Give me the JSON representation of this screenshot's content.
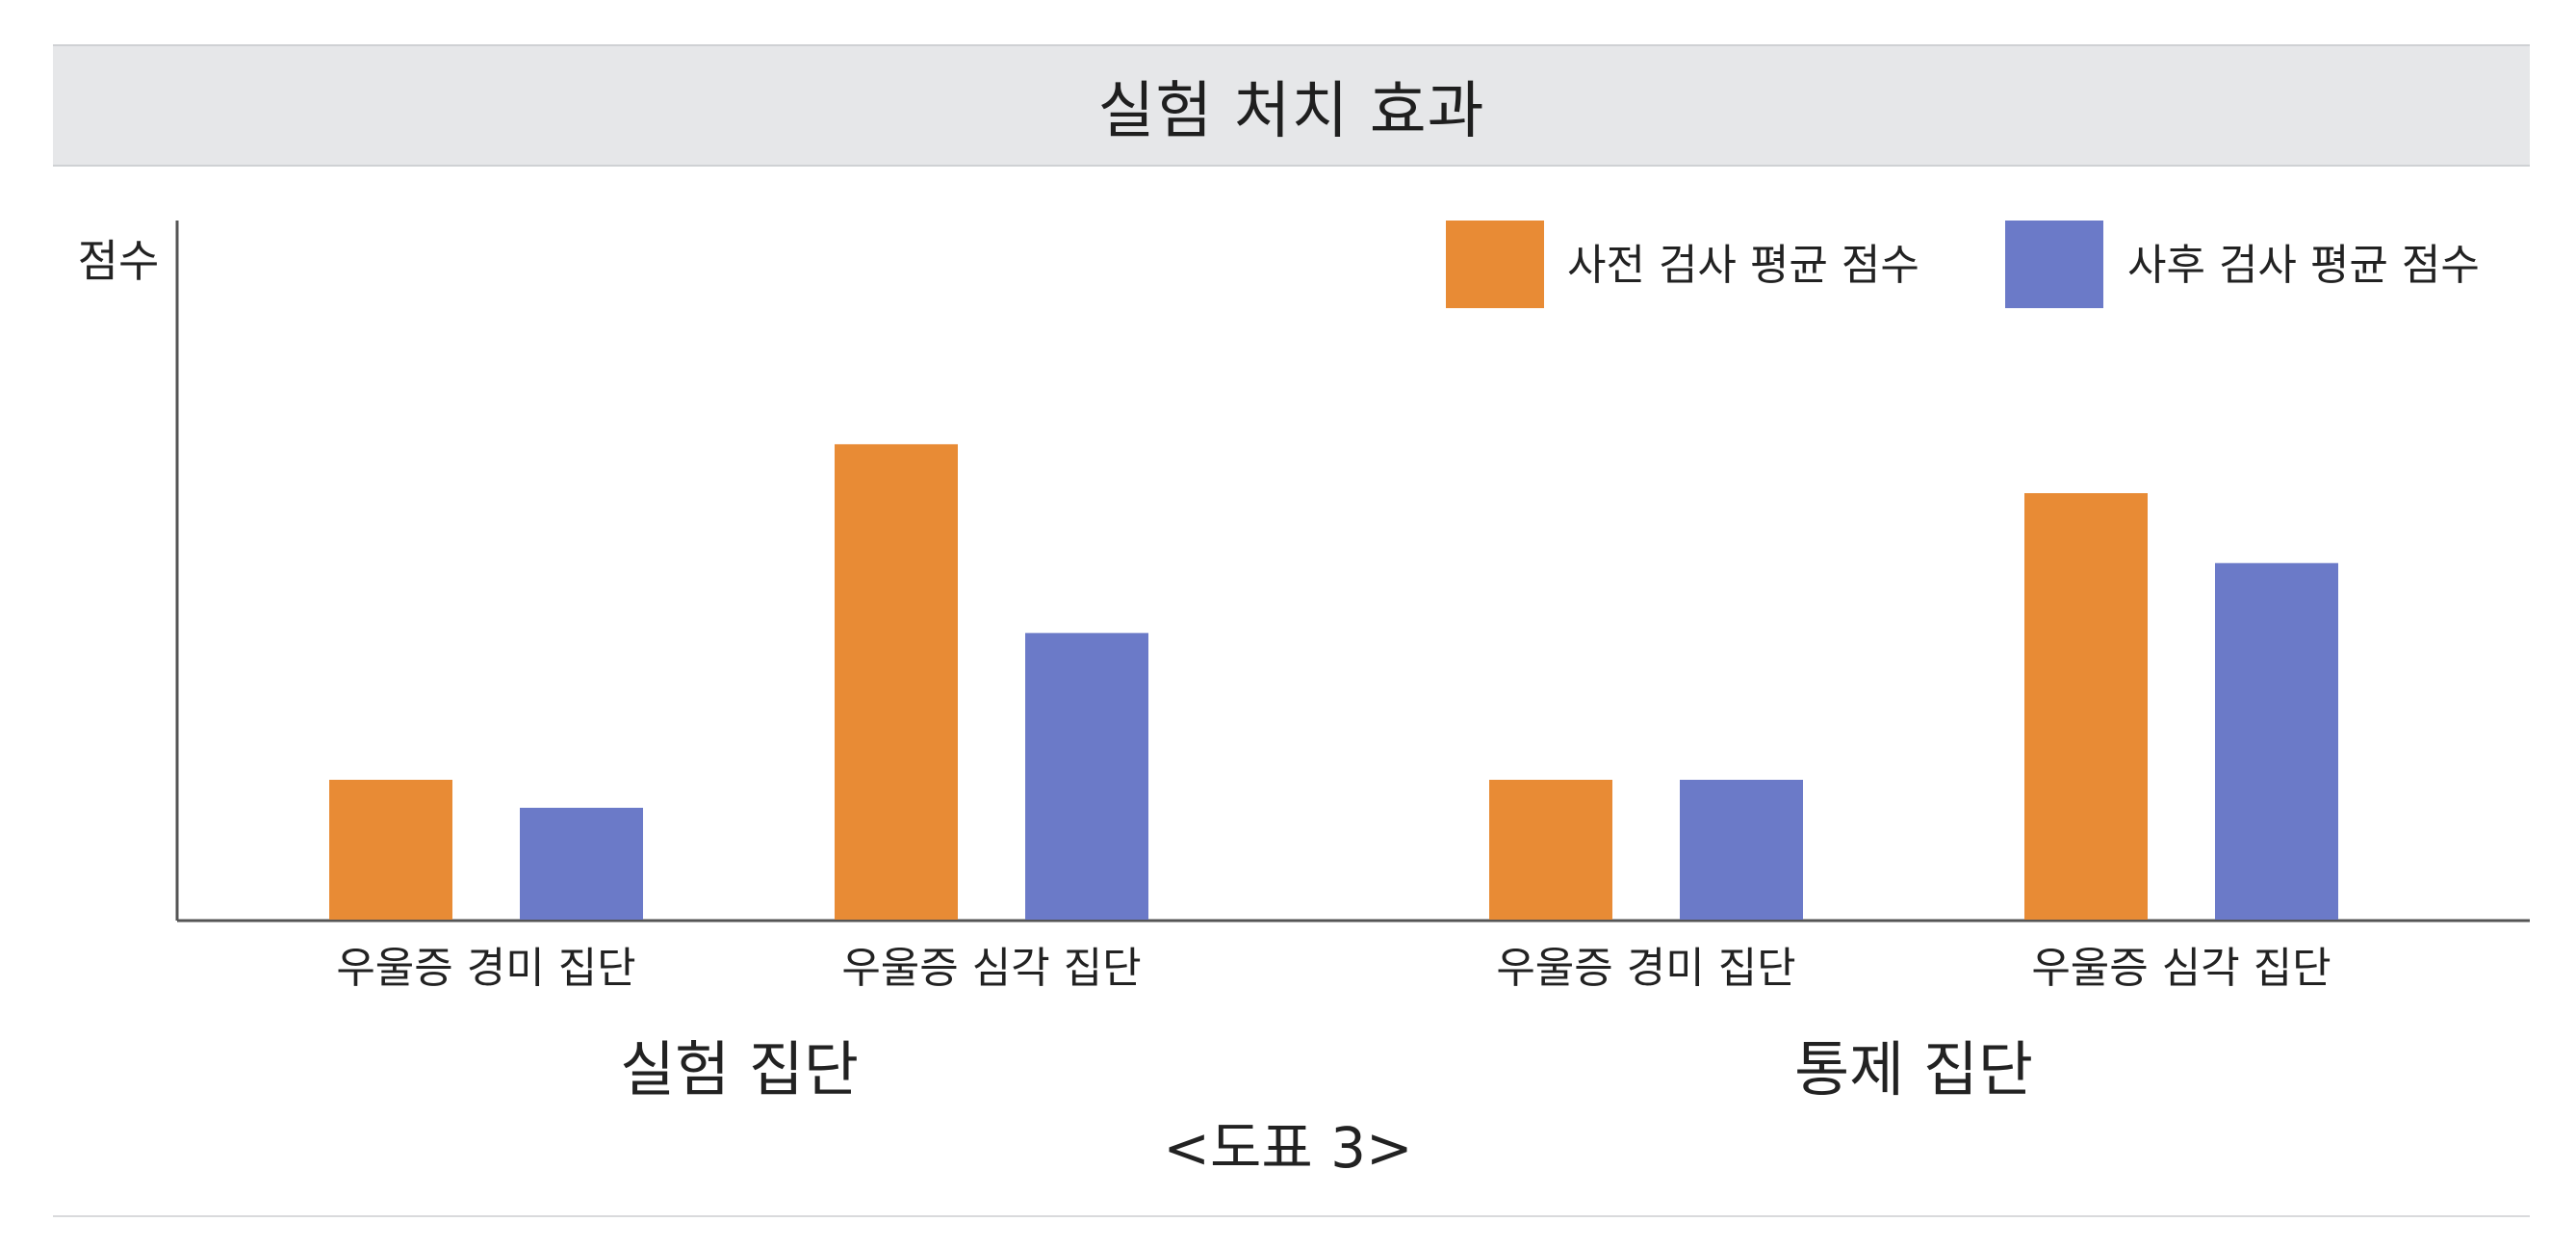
{
  "chart_data": {
    "type": "bar",
    "title": "실험 처치 효과",
    "ylabel": "점수",
    "caption": "<도표 3>",
    "ylim": [
      0,
      100
    ],
    "grid": false,
    "legend_position": "top-right",
    "groups": [
      {
        "label": "실험 집단",
        "categories": [
          "우울증 경미 집단",
          "우울증 심각 집단"
        ]
      },
      {
        "label": "통제 집단",
        "categories": [
          "우울증 경미 집단",
          "우울증 심각 집단"
        ]
      }
    ],
    "categories": [
      "우울증 경미 집단",
      "우울증 심각 집단",
      "우울증 경미 집단",
      "우울증 심각 집단"
    ],
    "series": [
      {
        "name": "사전 검사 평균 점수",
        "color": "#e88b35",
        "values": [
          20,
          68,
          20,
          61
        ]
      },
      {
        "name": "사후 검사 평균 점수",
        "color": "#6b7ac8",
        "values": [
          16,
          41,
          20,
          51
        ]
      }
    ]
  }
}
